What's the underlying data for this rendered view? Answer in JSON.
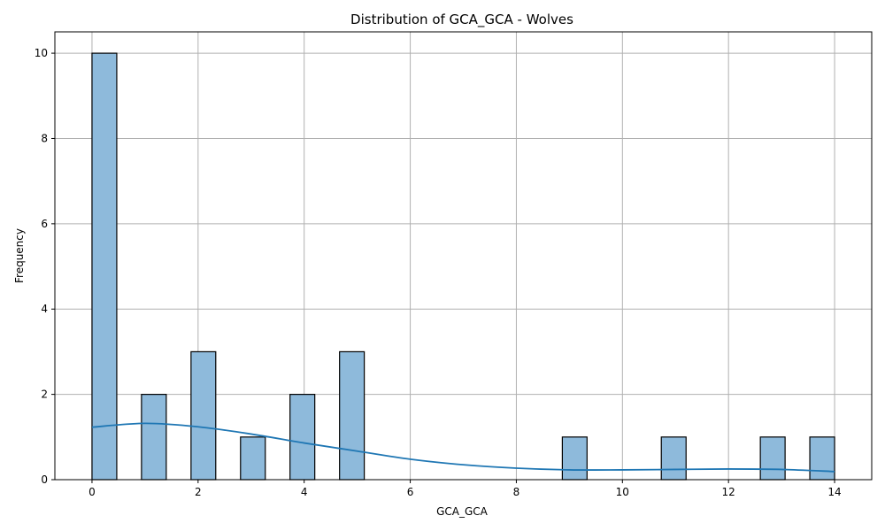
{
  "chart_data": {
    "type": "bar",
    "title": "Distribution of GCA_GCA - Wolves",
    "xlabel": "GCA_GCA",
    "ylabel": "Frequency",
    "xlim": [
      -0.7,
      14.7
    ],
    "ylim": [
      0,
      10.5
    ],
    "xticks": [
      "0",
      "2",
      "4",
      "6",
      "8",
      "10",
      "12",
      "14"
    ],
    "yticks": [
      "0",
      "2",
      "4",
      "6",
      "8",
      "10"
    ],
    "grid": true,
    "bar_color": "#8ebadb",
    "edge_color": "#000000",
    "kde_color": "#1f77b4",
    "bins": [
      {
        "x0": 0.0,
        "x1": 0.467,
        "count": 10
      },
      {
        "x0": 0.933,
        "x1": 1.4,
        "count": 2
      },
      {
        "x0": 1.867,
        "x1": 2.333,
        "count": 3
      },
      {
        "x0": 2.8,
        "x1": 3.267,
        "count": 1
      },
      {
        "x0": 3.733,
        "x1": 4.2,
        "count": 2
      },
      {
        "x0": 4.667,
        "x1": 5.133,
        "count": 3
      },
      {
        "x0": 8.867,
        "x1": 9.333,
        "count": 1
      },
      {
        "x0": 10.733,
        "x1": 11.2,
        "count": 1
      },
      {
        "x0": 12.6,
        "x1": 13.067,
        "count": 1
      },
      {
        "x0": 13.533,
        "x1": 14.0,
        "count": 1
      }
    ],
    "kde": {
      "x": [
        0,
        1,
        2,
        3,
        4,
        5,
        6,
        7,
        8,
        9,
        10,
        11,
        12,
        13,
        14
      ],
      "y": [
        1.23,
        1.32,
        1.24,
        1.07,
        0.86,
        0.67,
        0.48,
        0.35,
        0.27,
        0.23,
        0.23,
        0.24,
        0.25,
        0.24,
        0.19
      ]
    }
  }
}
